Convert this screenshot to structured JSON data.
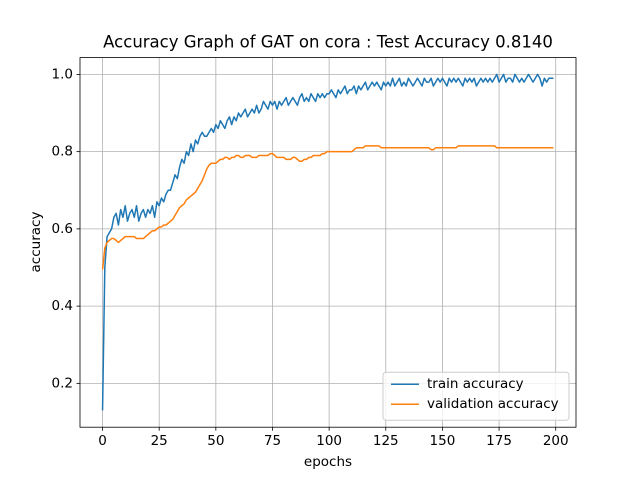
{
  "chart_data": {
    "type": "line",
    "title": "Accuracy Graph of GAT on cora : Test Accuracy 0.8140",
    "x_label": "epochs",
    "y_label": "accuracy",
    "x": [
      0,
      1,
      2,
      3,
      4,
      5,
      6,
      7,
      8,
      9,
      10,
      11,
      12,
      13,
      14,
      15,
      16,
      17,
      18,
      19,
      20,
      21,
      22,
      23,
      24,
      25,
      26,
      27,
      28,
      29,
      30,
      31,
      32,
      33,
      34,
      35,
      36,
      37,
      38,
      39,
      40,
      41,
      42,
      43,
      44,
      45,
      46,
      47,
      48,
      49,
      50,
      51,
      52,
      53,
      54,
      55,
      56,
      57,
      58,
      59,
      60,
      61,
      62,
      63,
      64,
      65,
      66,
      67,
      68,
      69,
      70,
      71,
      72,
      73,
      74,
      75,
      76,
      77,
      78,
      79,
      80,
      81,
      82,
      83,
      84,
      85,
      86,
      87,
      88,
      89,
      90,
      91,
      92,
      93,
      94,
      95,
      96,
      97,
      98,
      99,
      100,
      101,
      102,
      103,
      104,
      105,
      106,
      107,
      108,
      109,
      110,
      111,
      112,
      113,
      114,
      115,
      116,
      117,
      118,
      119,
      120,
      121,
      122,
      123,
      124,
      125,
      126,
      127,
      128,
      129,
      130,
      131,
      132,
      133,
      134,
      135,
      136,
      137,
      138,
      139,
      140,
      141,
      142,
      143,
      144,
      145,
      146,
      147,
      148,
      149,
      150,
      151,
      152,
      153,
      154,
      155,
      156,
      157,
      158,
      159,
      160,
      161,
      162,
      163,
      164,
      165,
      166,
      167,
      168,
      169,
      170,
      171,
      172,
      173,
      174,
      175,
      176,
      177,
      178,
      179,
      180,
      181,
      182,
      183,
      184,
      185,
      186,
      187,
      188,
      189,
      190,
      191,
      192,
      193,
      194,
      195,
      196,
      197,
      198,
      199
    ],
    "series": [
      {
        "name": "train accuracy",
        "color": "#1f77b4",
        "values": [
          0.13,
          0.5,
          0.58,
          0.59,
          0.6,
          0.63,
          0.64,
          0.61,
          0.65,
          0.63,
          0.66,
          0.62,
          0.64,
          0.65,
          0.63,
          0.66,
          0.62,
          0.64,
          0.65,
          0.63,
          0.65,
          0.64,
          0.66,
          0.63,
          0.67,
          0.66,
          0.68,
          0.67,
          0.69,
          0.7,
          0.7,
          0.72,
          0.74,
          0.73,
          0.76,
          0.78,
          0.77,
          0.8,
          0.79,
          0.82,
          0.8,
          0.83,
          0.82,
          0.84,
          0.85,
          0.84,
          0.84,
          0.85,
          0.86,
          0.85,
          0.87,
          0.86,
          0.88,
          0.87,
          0.86,
          0.88,
          0.89,
          0.87,
          0.89,
          0.88,
          0.9,
          0.89,
          0.9,
          0.91,
          0.89,
          0.9,
          0.91,
          0.9,
          0.92,
          0.9,
          0.91,
          0.93,
          0.92,
          0.91,
          0.93,
          0.92,
          0.93,
          0.91,
          0.93,
          0.92,
          0.93,
          0.94,
          0.92,
          0.93,
          0.94,
          0.93,
          0.92,
          0.94,
          0.95,
          0.93,
          0.94,
          0.93,
          0.95,
          0.94,
          0.93,
          0.95,
          0.94,
          0.95,
          0.94,
          0.95,
          0.95,
          0.96,
          0.95,
          0.94,
          0.96,
          0.95,
          0.96,
          0.97,
          0.95,
          0.96,
          0.96,
          0.97,
          0.95,
          0.97,
          0.96,
          0.97,
          0.98,
          0.96,
          0.97,
          0.98,
          0.97,
          0.98,
          0.97,
          0.96,
          0.98,
          0.97,
          0.98,
          0.97,
          0.99,
          0.97,
          0.98,
          0.99,
          0.97,
          0.98,
          0.97,
          0.99,
          0.98,
          0.97,
          0.98,
          0.99,
          0.98,
          0.97,
          0.99,
          0.98,
          0.98,
          0.99,
          0.97,
          0.98,
          0.99,
          0.98,
          0.99,
          0.98,
          0.97,
          0.99,
          0.98,
          0.99,
          0.98,
          0.99,
          0.98,
          0.97,
          0.99,
          0.98,
          0.99,
          0.98,
          0.99,
          0.97,
          0.98,
          0.99,
          0.98,
          0.99,
          0.98,
          0.99,
          0.98,
          0.99,
          1.0,
          0.98,
          0.99,
          1.0,
          0.98,
          0.99,
          0.99,
          0.98,
          1.0,
          0.99,
          0.98,
          0.99,
          0.98,
          0.99,
          1.0,
          0.99,
          0.98,
          0.99,
          1.0,
          0.99,
          0.97,
          0.99,
          0.98,
          0.99,
          0.99,
          0.99
        ]
      },
      {
        "name": "validation accuracy",
        "color": "#ff7f0e",
        "values": [
          0.495,
          0.55,
          0.565,
          0.57,
          0.575,
          0.575,
          0.57,
          0.565,
          0.57,
          0.575,
          0.58,
          0.58,
          0.58,
          0.58,
          0.58,
          0.575,
          0.575,
          0.575,
          0.575,
          0.58,
          0.585,
          0.59,
          0.595,
          0.595,
          0.6,
          0.605,
          0.605,
          0.61,
          0.61,
          0.615,
          0.62,
          0.625,
          0.635,
          0.645,
          0.655,
          0.66,
          0.665,
          0.675,
          0.68,
          0.685,
          0.69,
          0.695,
          0.705,
          0.715,
          0.725,
          0.74,
          0.755,
          0.765,
          0.77,
          0.77,
          0.77,
          0.775,
          0.78,
          0.78,
          0.785,
          0.785,
          0.78,
          0.785,
          0.785,
          0.79,
          0.79,
          0.785,
          0.785,
          0.79,
          0.79,
          0.79,
          0.785,
          0.785,
          0.785,
          0.79,
          0.79,
          0.79,
          0.79,
          0.79,
          0.795,
          0.795,
          0.79,
          0.785,
          0.785,
          0.785,
          0.785,
          0.78,
          0.78,
          0.78,
          0.785,
          0.785,
          0.78,
          0.775,
          0.775,
          0.78,
          0.78,
          0.785,
          0.785,
          0.79,
          0.79,
          0.79,
          0.79,
          0.795,
          0.795,
          0.8,
          0.8,
          0.8,
          0.8,
          0.8,
          0.8,
          0.8,
          0.8,
          0.8,
          0.8,
          0.8,
          0.8,
          0.805,
          0.81,
          0.81,
          0.81,
          0.81,
          0.815,
          0.815,
          0.815,
          0.815,
          0.815,
          0.815,
          0.815,
          0.81,
          0.81,
          0.81,
          0.81,
          0.81,
          0.81,
          0.81,
          0.81,
          0.81,
          0.81,
          0.81,
          0.81,
          0.81,
          0.81,
          0.81,
          0.81,
          0.81,
          0.81,
          0.81,
          0.81,
          0.81,
          0.81,
          0.805,
          0.805,
          0.81,
          0.81,
          0.81,
          0.81,
          0.81,
          0.81,
          0.81,
          0.81,
          0.81,
          0.81,
          0.815,
          0.815,
          0.815,
          0.815,
          0.815,
          0.815,
          0.815,
          0.815,
          0.815,
          0.815,
          0.815,
          0.815,
          0.815,
          0.815,
          0.815,
          0.815,
          0.815,
          0.81,
          0.81,
          0.81,
          0.81,
          0.81,
          0.81,
          0.81,
          0.81,
          0.81,
          0.81,
          0.81,
          0.81,
          0.81,
          0.81,
          0.81,
          0.81,
          0.81,
          0.81,
          0.81,
          0.81,
          0.81,
          0.81,
          0.81,
          0.81,
          0.81,
          0.81
        ]
      }
    ],
    "xlim": [
      -9.95,
      208.95
    ],
    "xticks": [
      0,
      25,
      50,
      75,
      100,
      125,
      150,
      175,
      200
    ],
    "ylim": [
      0.0865,
      1.0435
    ],
    "yticks": [
      0.2,
      0.4,
      0.6,
      0.8,
      {
        "value": 1,
        "label": "1.0"
      }
    ],
    "grid": true,
    "legend": "lower right"
  }
}
